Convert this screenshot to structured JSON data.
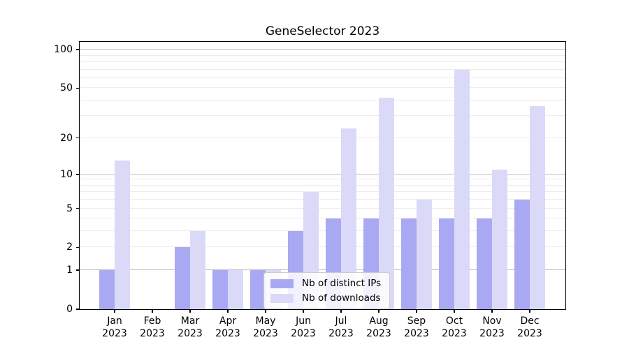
{
  "chart_data": {
    "type": "bar",
    "title": "GeneSelector 2023",
    "categories": [
      "Jan",
      "Feb",
      "Mar",
      "Apr",
      "May",
      "Jun",
      "Jul",
      "Aug",
      "Sep",
      "Oct",
      "Nov",
      "Dec"
    ],
    "year_label": "2023",
    "series": [
      {
        "name": "Nb of distinct IPs",
        "color": "#a9a9f3",
        "values": [
          1,
          0,
          2,
          1,
          1,
          3,
          4,
          4,
          4,
          4,
          4,
          6
        ]
      },
      {
        "name": "Nb of downloads",
        "color": "#dadaf8",
        "values": [
          13,
          0,
          3,
          1,
          1,
          7,
          24,
          42,
          6,
          70,
          11,
          36
        ]
      }
    ],
    "yscale": "log1p",
    "ylim": [
      0,
      115
    ],
    "yticks": [
      0,
      1,
      2,
      5,
      10,
      20,
      50,
      100
    ],
    "grid_minor_values": [
      2,
      3,
      4,
      5,
      6,
      7,
      8,
      9,
      20,
      30,
      40,
      50,
      60,
      70,
      80,
      90
    ],
    "grid_major_values": [
      1,
      10,
      100
    ],
    "legend_position": "lower center",
    "xlabel": "",
    "ylabel": ""
  },
  "colors": {
    "background": "#ffffff",
    "spine": "#000000",
    "grid_minor": "#ececec",
    "grid_major": "#bdbdbd",
    "series_ips": "#a9a9f3",
    "series_downloads": "#dadaf8"
  }
}
